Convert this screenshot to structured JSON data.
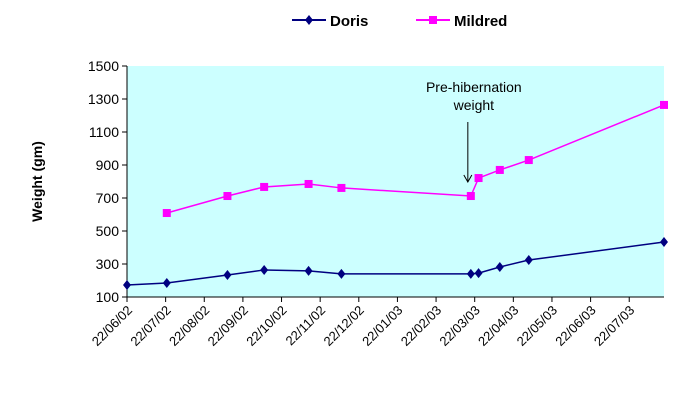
{
  "chart_data": {
    "type": "line",
    "title": "",
    "xlabel": "",
    "ylabel": "Weight (gm)",
    "ylim": [
      100,
      1500
    ],
    "yticks": [
      100,
      300,
      500,
      700,
      900,
      1100,
      1300,
      1500
    ],
    "x_unit": "months since 22/06/02",
    "xlim": [
      0,
      13.9
    ],
    "xtick_labels": [
      "22/06/02",
      "22/07/02",
      "22/08/02",
      "22/09/02",
      "22/10/02",
      "22/11/02",
      "22/12/02",
      "22/01/03",
      "22/02/03",
      "22/03/03",
      "22/04/03",
      "22/05/03",
      "22/06/03",
      "22/07/03"
    ],
    "legend_position": "top-center",
    "series": [
      {
        "name": "Doris",
        "color": "#000080",
        "marker": "diamond",
        "x": [
          0,
          1.03,
          2.6,
          3.55,
          4.7,
          5.55,
          8.9,
          9.1,
          9.65,
          10.4,
          13.9
        ],
        "y": [
          173,
          185,
          233,
          264,
          258,
          240,
          240,
          245,
          282,
          324,
          433
        ]
      },
      {
        "name": "Mildred",
        "color": "#FF00FF",
        "marker": "square",
        "x": [
          1.03,
          2.6,
          3.55,
          4.7,
          5.55,
          8.9,
          9.1,
          9.65,
          10.4,
          13.9
        ],
        "y": [
          609,
          712,
          767,
          785,
          761,
          712,
          821,
          870,
          930,
          1264
        ]
      }
    ],
    "annotations": [
      {
        "text_line1": "Pre-hibernation",
        "text_line2": "weight",
        "series": "Mildred",
        "x": 8.9
      }
    ],
    "plot_background": "#CCFFFF"
  }
}
